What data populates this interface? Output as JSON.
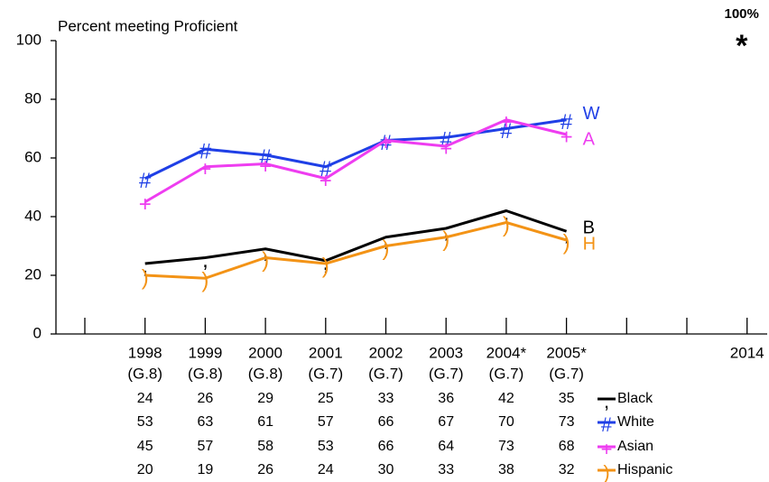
{
  "chart_data": {
    "type": "line",
    "y_label": "Percent meeting Proficient",
    "categories": [
      null,
      "1998",
      "1999",
      "2000",
      "2001",
      "2002",
      "2003",
      "2004*",
      "2005*",
      null,
      null,
      "2014"
    ],
    "grades": [
      null,
      "(G.8)",
      "(G.8)",
      "(G.8)",
      "(G.7)",
      "(G.7)",
      "(G.7)",
      "(G.7)",
      "(G.7)",
      null,
      null,
      null
    ],
    "ylim": [
      0,
      100
    ],
    "yticks": [
      0,
      20,
      40,
      60,
      80,
      100
    ],
    "grid": false,
    "series": [
      {
        "name": "Black",
        "color": "#000000",
        "marker": ",",
        "end_label": "B",
        "values": [
          null,
          24,
          26,
          29,
          25,
          33,
          36,
          42,
          35,
          null,
          null,
          null
        ]
      },
      {
        "name": "White",
        "color": "#1f3fe6",
        "marker": "#",
        "end_label": "W",
        "values": [
          null,
          53,
          63,
          61,
          57,
          66,
          67,
          70,
          73,
          null,
          null,
          null
        ]
      },
      {
        "name": "Asian",
        "color": "#ee3df0",
        "marker": "+",
        "end_label": "A",
        "values": [
          null,
          45,
          57,
          58,
          53,
          66,
          64,
          73,
          68,
          null,
          null,
          null
        ]
      },
      {
        "name": "Hispanic",
        "color": "#f39316",
        "marker": ")",
        "end_label": "H",
        "values": [
          null,
          20,
          19,
          26,
          24,
          30,
          33,
          38,
          32,
          null,
          null,
          null
        ]
      }
    ],
    "annotation": {
      "label": "100%",
      "marker": "*",
      "category": "2014",
      "value": 100
    }
  }
}
